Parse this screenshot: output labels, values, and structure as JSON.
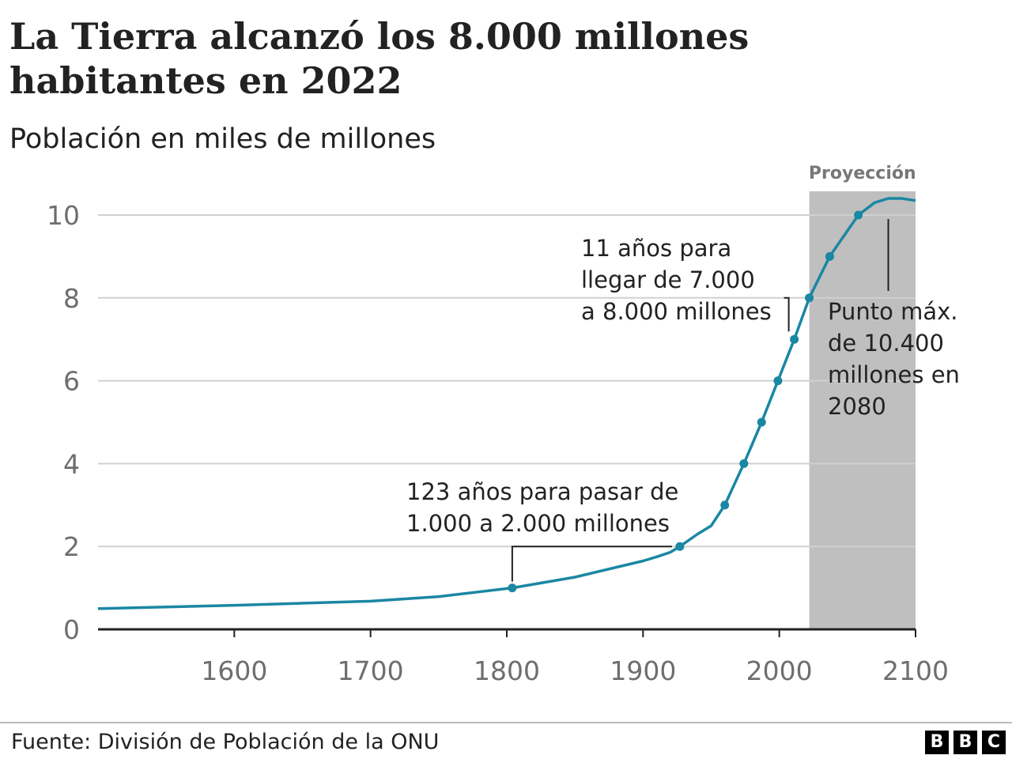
{
  "title": "La Tierra alcanzó los 8.000 millones habitantes en 2022",
  "subtitle": "Población en miles de millones",
  "source": "Fuente: División de Población de la ONU",
  "logo": [
    "B",
    "B",
    "C"
  ],
  "colors": {
    "line": "#1a87a3",
    "projection_band": "#bfbfbf",
    "grid": "#d0d0d0",
    "axis": "#222222",
    "tick_text": "#6e6e6e",
    "annotation_text": "#222222"
  },
  "chart_data": {
    "type": "line",
    "xlim": [
      1500,
      2100
    ],
    "ylim": [
      0,
      10
    ],
    "x_ticks": [
      1600,
      1700,
      1800,
      1900,
      2000,
      2100
    ],
    "x_tick_labels": [
      "1600",
      "1700",
      "1800",
      "1900",
      "2000",
      "2100"
    ],
    "y_ticks": [
      0,
      2,
      4,
      6,
      8,
      10
    ],
    "y_tick_labels": [
      "0",
      "2",
      "4",
      "6",
      "8",
      "10"
    ],
    "grid": "horizontal",
    "projection": {
      "label": "Proyección",
      "from": 2022,
      "to": 2100
    },
    "series": [
      {
        "x": [
          1500,
          1600,
          1700,
          1750,
          1804,
          1850,
          1900,
          1910,
          1920,
          1927,
          1940,
          1950,
          1960,
          1974,
          1987,
          1999,
          2011,
          2022,
          2037,
          2058,
          2070,
          2080,
          2090,
          2100
        ],
        "y": [
          0.5,
          0.58,
          0.68,
          0.79,
          1.0,
          1.26,
          1.65,
          1.75,
          1.86,
          2.0,
          2.3,
          2.5,
          3.0,
          4.0,
          5.0,
          6.0,
          7.0,
          8.0,
          9.0,
          10.0,
          10.3,
          10.4,
          10.4,
          10.35
        ]
      }
    ],
    "milestones": [
      {
        "year": 1804,
        "value": 1
      },
      {
        "year": 1927,
        "value": 2
      },
      {
        "year": 1960,
        "value": 3
      },
      {
        "year": 1974,
        "value": 4
      },
      {
        "year": 1987,
        "value": 5
      },
      {
        "year": 1999,
        "value": 6
      },
      {
        "year": 2011,
        "value": 7
      },
      {
        "year": 2022,
        "value": 8
      },
      {
        "year": 2037,
        "value": 9
      },
      {
        "year": 2058,
        "value": 10
      }
    ],
    "annotations": [
      {
        "id": "annotation-123-years",
        "lines": [
          "123 años para pasar de",
          "1.000 a 2.000 millones"
        ],
        "from_year": 1804,
        "to_year": 1927
      },
      {
        "id": "annotation-11-years",
        "lines": [
          "11 años para",
          "llegar de 7.000",
          "a 8.000 millones"
        ],
        "from_year": 2011,
        "to_year": 2022
      },
      {
        "id": "annotation-peak",
        "lines": [
          "Punto máx.",
          "de 10.400",
          "millones en",
          "2080"
        ],
        "year": 2080,
        "value": 10.4
      }
    ]
  }
}
